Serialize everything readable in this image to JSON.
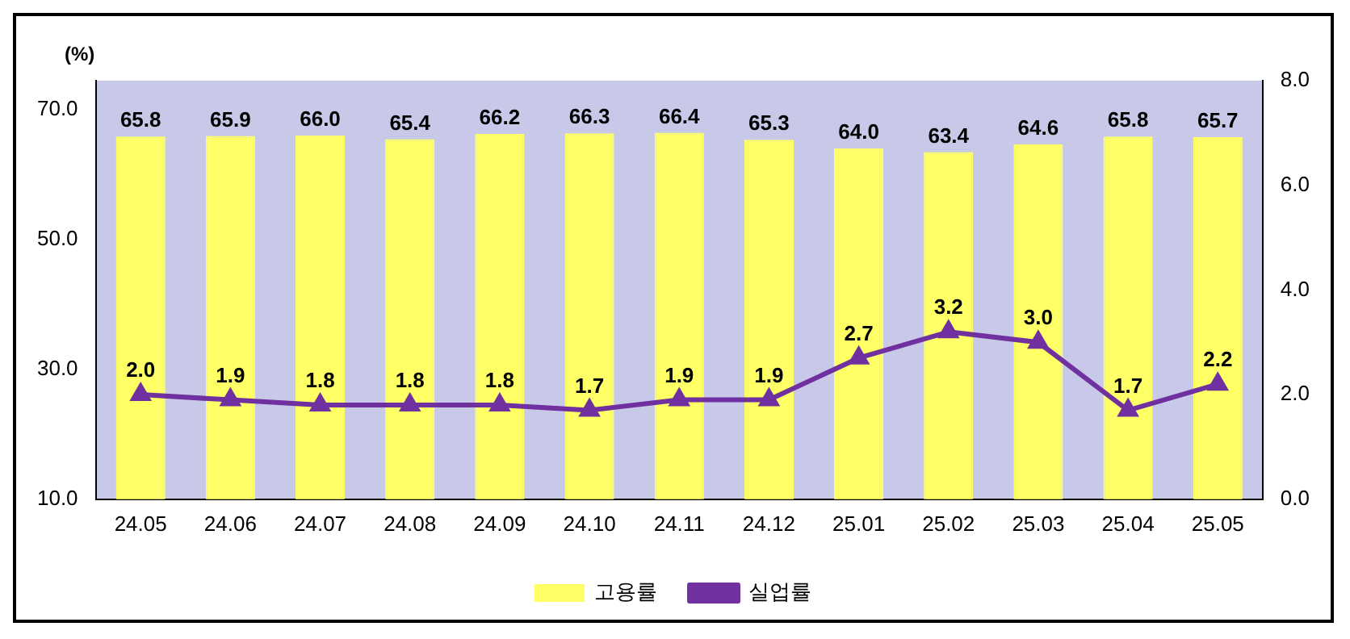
{
  "chart_data": {
    "type": "bar",
    "ylabel": "(%)",
    "categories": [
      "24.05",
      "24.06",
      "24.07",
      "24.08",
      "24.09",
      "24.10",
      "24.11",
      "24.12",
      "25.01",
      "25.02",
      "25.03",
      "25.04",
      "25.05"
    ],
    "series": [
      {
        "name": "고용률",
        "color": "#ffff66",
        "values": [
          65.8,
          65.9,
          66.0,
          65.4,
          66.2,
          66.3,
          66.4,
          65.3,
          64.0,
          63.4,
          64.6,
          65.8,
          65.7
        ],
        "value_labels": [
          "65.8",
          "65.9",
          "66.0",
          "65.4",
          "66.2",
          "66.3",
          "66.4",
          "65.3",
          "64.0",
          "63.4",
          "64.6",
          "65.8",
          "65.7"
        ]
      },
      {
        "name": "실업률",
        "type": "line",
        "axis": "y2",
        "color": "#7030a0",
        "marker": "triangle",
        "values": [
          2.0,
          1.9,
          1.8,
          1.8,
          1.8,
          1.7,
          1.9,
          1.9,
          2.7,
          3.2,
          3.0,
          1.7,
          2.2
        ],
        "value_labels": [
          "2.0",
          "1.9",
          "1.8",
          "1.8",
          "1.8",
          "1.7",
          "1.9",
          "1.9",
          "2.7",
          "3.2",
          "3.0",
          "1.7",
          "2.2"
        ]
      }
    ],
    "ylim": [
      10,
      74.4
    ],
    "yticks": [
      {
        "value": 10,
        "label": "10.0"
      },
      {
        "value": 30,
        "label": "30.0"
      },
      {
        "value": 50,
        "label": "50.0"
      },
      {
        "value": 70,
        "label": "70.0"
      }
    ],
    "y2lim": [
      0,
      8
    ],
    "y2ticks": [
      {
        "value": 0,
        "label": "0.0"
      },
      {
        "value": 2,
        "label": "2.0"
      },
      {
        "value": 4,
        "label": "4.0"
      },
      {
        "value": 6,
        "label": "6.0"
      },
      {
        "value": 8,
        "label": "8.0"
      }
    ],
    "legend": "bottom"
  }
}
